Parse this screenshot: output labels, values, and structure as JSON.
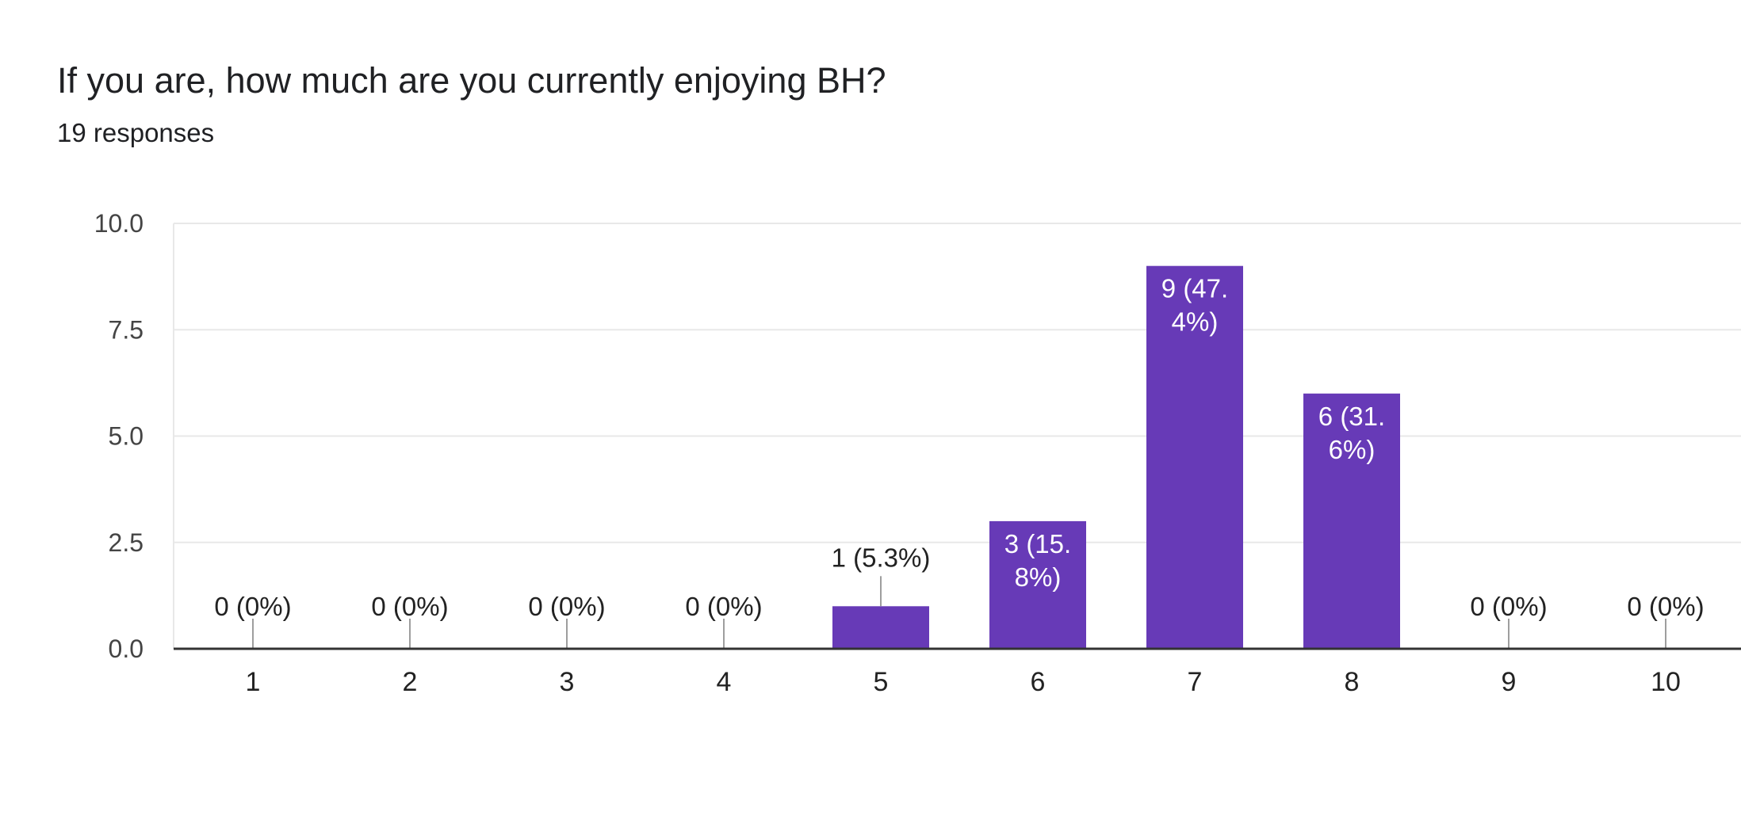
{
  "header": {
    "title": "If you are, how much are you currently enjoying BH?",
    "responses": "19 responses"
  },
  "colors": {
    "bar": "#673ab7",
    "grid": "#e8e8e8",
    "axis": "#333333",
    "leader": "#9e9e9e"
  },
  "chart_data": {
    "type": "bar",
    "title": "If you are, how much are you currently enjoying BH?",
    "subtitle": "19 responses",
    "categories": [
      "1",
      "2",
      "3",
      "4",
      "5",
      "6",
      "7",
      "8",
      "9",
      "10"
    ],
    "values": [
      0,
      0,
      0,
      0,
      1,
      3,
      9,
      6,
      0,
      0
    ],
    "data_labels": [
      "0 (0%)",
      "0 (0%)",
      "0 (0%)",
      "0 (0%)",
      "1 (5.3%)",
      "3 (15.8%)",
      "9 (47.4%)",
      "6 (31.6%)",
      "0 (0%)",
      "0 (0%)"
    ],
    "yticks": [
      "0.0",
      "2.5",
      "5.0",
      "7.5",
      "10.0"
    ],
    "ylim": [
      0,
      10
    ],
    "xlabel": "",
    "ylabel": "",
    "grid": true,
    "legend": "none"
  }
}
